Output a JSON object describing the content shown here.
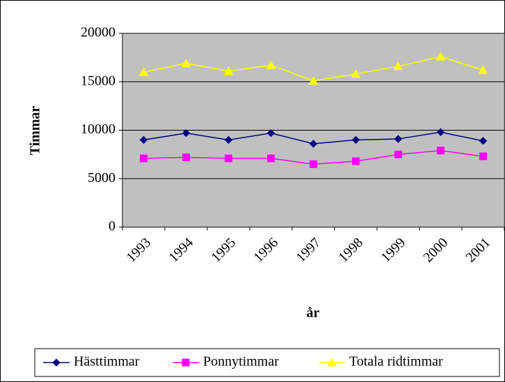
{
  "chart_data": {
    "type": "line",
    "x_label": "år",
    "y_label": "Timmar",
    "categories": [
      "1993",
      "1994",
      "1995",
      "1996",
      "1997",
      "1998",
      "1999",
      "2000",
      "2001"
    ],
    "series": [
      {
        "name": "Hästtimmar",
        "color": "#000080",
        "marker": "diamond",
        "values": [
          9000,
          9700,
          9000,
          9700,
          8600,
          9000,
          9100,
          9800,
          8900
        ]
      },
      {
        "name": "Ponnytimmar",
        "color": "#ff00ff",
        "marker": "square",
        "values": [
          7100,
          7200,
          7100,
          7100,
          6500,
          6800,
          7500,
          7900,
          7300
        ]
      },
      {
        "name": "Totala ridtimmar",
        "color": "#ffff00",
        "marker": "triangle",
        "values": [
          16000,
          16900,
          16100,
          16700,
          15100,
          15800,
          16600,
          17600,
          16200
        ]
      }
    ],
    "ylim": [
      0,
      20000
    ],
    "yticks": [
      0,
      5000,
      10000,
      15000,
      20000
    ],
    "grid": true,
    "legend": "bottom"
  }
}
